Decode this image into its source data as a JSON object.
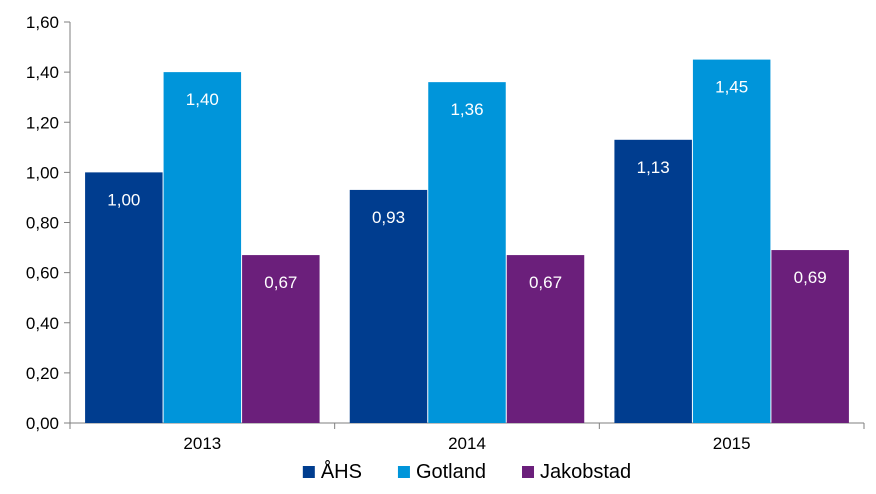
{
  "chart_data": {
    "type": "bar",
    "categories": [
      "2013",
      "2014",
      "2015"
    ],
    "series": [
      {
        "name": "ÅHS",
        "values": [
          1.0,
          0.93,
          1.13
        ],
        "labels": [
          "1,00",
          "0,93",
          "1,13"
        ],
        "color": "#003D8F"
      },
      {
        "name": "Gotland",
        "values": [
          1.4,
          1.36,
          1.45
        ],
        "labels": [
          "1,40",
          "1,36",
          "1,45"
        ],
        "color": "#0095DA"
      },
      {
        "name": "Jakobstad",
        "values": [
          0.67,
          0.67,
          0.69
        ],
        "labels": [
          "0,67",
          "0,67",
          "0,69"
        ],
        "color": "#6B1F7B"
      }
    ],
    "ylim": [
      0,
      1.6
    ],
    "yticks": [
      "0,00",
      "0,20",
      "0,40",
      "0,60",
      "0,80",
      "1,00",
      "1,20",
      "1,40",
      "1,60"
    ],
    "ytick_values": [
      0,
      0.2,
      0.4,
      0.6,
      0.8,
      1.0,
      1.2,
      1.4,
      1.6
    ],
    "title": "",
    "xlabel": "",
    "ylabel": "",
    "grid": false,
    "legend_position": "bottom"
  }
}
